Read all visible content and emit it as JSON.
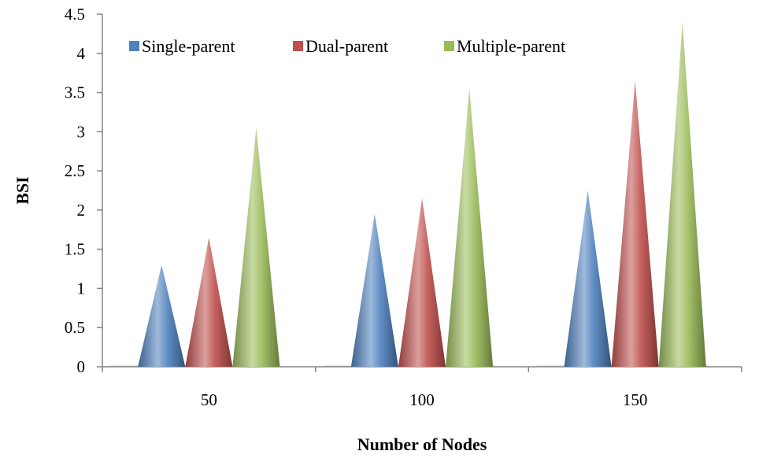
{
  "chart_data": {
    "type": "bar",
    "bar_shape": "cone",
    "title": "",
    "xlabel": "Number of Nodes",
    "ylabel": "BSI",
    "categories": [
      "50",
      "100",
      "150"
    ],
    "series": [
      {
        "name": "Single-parent",
        "values": [
          1.3,
          1.95,
          2.25
        ],
        "color": "#4f81bd"
      },
      {
        "name": "Dual-parent",
        "values": [
          1.65,
          2.15,
          3.65
        ],
        "color": "#c0504d"
      },
      {
        "name": "Multiple-parent",
        "values": [
          3.05,
          3.55,
          4.4
        ],
        "color": "#9bbb59"
      }
    ],
    "ylim": [
      0,
      4.5
    ],
    "yticks": [
      "0",
      "0.5",
      "1",
      "1.5",
      "2",
      "2.5",
      "3",
      "3.5",
      "4",
      "4.5"
    ],
    "grid": false,
    "legend_position": "top-left"
  }
}
